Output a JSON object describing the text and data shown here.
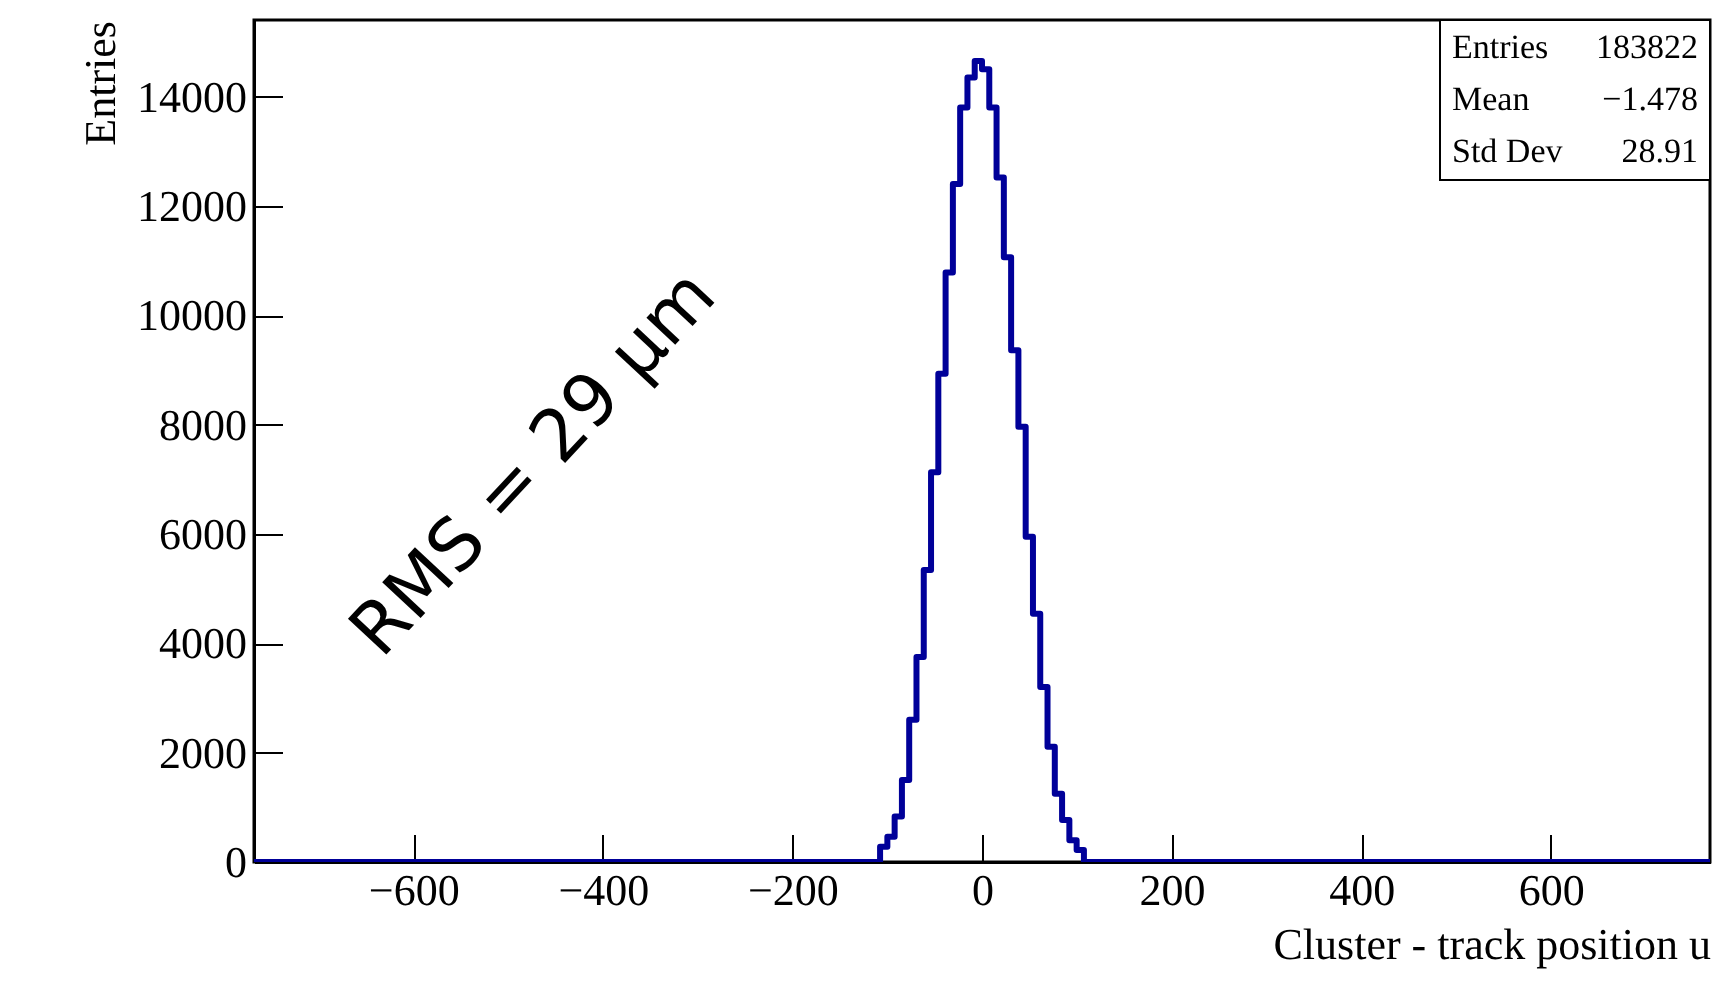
{
  "chart_data": {
    "type": "histogram",
    "xlabel": "Cluster - track position u",
    "ylabel": "Entries",
    "bins": [
      -768,
      -107.52,
      -99.84,
      -92.16,
      -84.48,
      -76.8,
      -69.12,
      -61.44,
      -53.76,
      -46.08,
      -38.4,
      -30.72,
      -23.04,
      -15.36,
      -7.68,
      0,
      7.68,
      15.36,
      23.04,
      30.72,
      38.4,
      46.08,
      53.76,
      61.44,
      69.12,
      76.8,
      84.48,
      92.16,
      99.84,
      107.52,
      768
    ],
    "values": [
      0,
      280,
      460,
      830,
      1500,
      2600,
      3750,
      5340,
      7130,
      8930,
      10780,
      12400,
      13800,
      14350,
      14650,
      14500,
      13800,
      12520,
      11060,
      9360,
      7960,
      5950,
      4540,
      3200,
      2110,
      1250,
      770,
      400,
      220,
      0
    ],
    "color": "#000099",
    "xlim": [
      -768,
      768
    ],
    "xticks": [
      -600,
      -400,
      -200,
      0,
      200,
      400,
      600
    ],
    "ylim": [
      0,
      15400
    ],
    "yticks": [
      0,
      2000,
      4000,
      6000,
      8000,
      10000,
      12000,
      14000
    ],
    "grid": false,
    "annotations": [
      "Entries",
      "183822",
      "Mean",
      "−1.478",
      "Std Dev",
      "28.91",
      "RMS = 29 μm"
    ]
  }
}
